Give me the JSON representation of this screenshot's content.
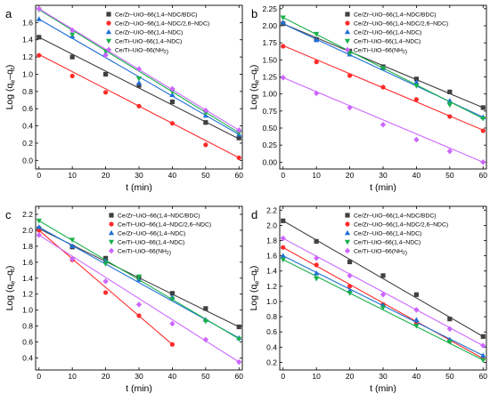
{
  "figure_colors": {
    "Ce/Zr–UiO–66(1,4–NDC/BDC)": "#404040",
    "Ce/Zr–UiO–66(1,4–NDC/2,6–NDC)": "#ff2a2a",
    "Ce/Zr–UiO–66(1,4–NDC)": "#1f6fd6",
    "Ce/Ti–UiO–66(1,4–NDC)": "#18b04a",
    "Ce/Ti–UiO–66(NH2)": "#cc66ff"
  },
  "chart_data": [
    {
      "panel": "a",
      "type": "scatter",
      "xlabel": "t (min)",
      "ylabel": "Log (qe−qt)",
      "xlim": [
        -1,
        61
      ],
      "ylim": [
        -0.1,
        1.8
      ],
      "xticks": [
        0,
        10,
        20,
        30,
        40,
        50,
        60
      ],
      "yticks": [
        0.0,
        0.2,
        0.4,
        0.6,
        0.8,
        1.0,
        1.2,
        1.4,
        1.6
      ],
      "legend_position": "top-right",
      "series": [
        {
          "name": "Ce/Zr–UiO–66(1,4–NDC/BDC)",
          "marker": "square",
          "x": [
            0,
            10,
            20,
            30,
            40,
            50,
            60
          ],
          "y": [
            1.43,
            1.2,
            1.0,
            0.87,
            0.68,
            0.44,
            0.26
          ],
          "fit": [
            1.43,
            0.25
          ]
        },
        {
          "name": "Ce/Zr–UiO–66(1,4–NDC/2,6–NDC)",
          "marker": "circle",
          "x": [
            0,
            10,
            20,
            30,
            40,
            50,
            60
          ],
          "y": [
            1.22,
            0.98,
            0.79,
            0.63,
            0.43,
            0.18,
            0.03
          ],
          "fit": [
            1.23,
            0.03
          ]
        },
        {
          "name": "Ce/Zr–UiO–66(1,4–NDC)",
          "marker": "triangle-up",
          "x": [
            0,
            10,
            20,
            30,
            40,
            50,
            60
          ],
          "y": [
            1.64,
            1.44,
            1.24,
            0.9,
            0.76,
            0.52,
            0.3
          ],
          "fit": [
            1.64,
            0.3
          ]
        },
        {
          "name": "Ce/Ti–UiO–66(1,4–NDC)",
          "marker": "triangle-down",
          "x": [
            0,
            10,
            20,
            30,
            40,
            50,
            60
          ],
          "y": [
            1.75,
            1.46,
            1.27,
            0.95,
            0.8,
            0.55,
            0.32
          ],
          "fit": [
            1.75,
            0.32
          ]
        },
        {
          "name": "Ce/Ti–UiO–66(NH2)",
          "marker": "diamond",
          "x": [
            0,
            10,
            20,
            30,
            40,
            50,
            60
          ],
          "y": [
            1.76,
            1.51,
            1.22,
            1.06,
            0.83,
            0.58,
            0.35
          ],
          "fit": [
            1.76,
            0.35
          ]
        }
      ]
    },
    {
      "panel": "b",
      "type": "scatter",
      "xlabel": "t (min)",
      "ylabel": "Log (qe−qt)",
      "xlim": [
        -1,
        61
      ],
      "ylim": [
        -0.1,
        2.3
      ],
      "xticks": [
        0,
        10,
        20,
        30,
        40,
        50,
        60
      ],
      "yticks": [
        0.0,
        0.25,
        0.5,
        0.75,
        1.0,
        1.25,
        1.5,
        1.75,
        2.0,
        2.25
      ],
      "legend_position": "top-right",
      "series": [
        {
          "name": "Ce/Zr–UiO–66(1,4–NDC/BDC)",
          "marker": "square",
          "x": [
            0,
            10,
            20,
            30,
            40,
            50,
            60
          ],
          "y": [
            2.03,
            1.8,
            1.63,
            1.4,
            1.22,
            1.03,
            0.8
          ],
          "fit": [
            2.03,
            0.8
          ]
        },
        {
          "name": "Ce/Zr–UiO–66(1,4–NDC/2,6–NDC)",
          "marker": "circle",
          "x": [
            0,
            10,
            20,
            30,
            40,
            50,
            60
          ],
          "y": [
            1.7,
            1.47,
            1.27,
            1.1,
            0.92,
            0.67,
            0.46
          ],
          "fit": [
            1.71,
            0.47
          ]
        },
        {
          "name": "Ce/Zr–UiO–66(1,4–NDC)",
          "marker": "triangle-up",
          "x": [
            0,
            10,
            20,
            30,
            40,
            50,
            60
          ],
          "y": [
            2.05,
            1.79,
            1.58,
            1.38,
            1.17,
            0.9,
            0.66
          ],
          "fit": [
            2.03,
            0.66
          ]
        },
        {
          "name": "Ce/Ti–UiO–66(1,4–NDC)",
          "marker": "triangle-down",
          "x": [
            0,
            10,
            20,
            30,
            40,
            50,
            60
          ],
          "y": [
            2.12,
            1.88,
            1.6,
            1.38,
            1.12,
            0.84,
            0.64
          ],
          "fit": [
            2.12,
            0.64
          ]
        },
        {
          "name": "Ce/Ti–UiO–66(NH2)",
          "marker": "diamond",
          "x": [
            0,
            10,
            20,
            30,
            40,
            50,
            60
          ],
          "y": [
            1.24,
            1.01,
            0.8,
            0.55,
            0.33,
            0.16,
            0.0
          ],
          "fit": [
            1.24,
            0.0
          ]
        }
      ]
    },
    {
      "panel": "c",
      "type": "scatter",
      "xlabel": "t (min)",
      "ylabel": "Log (qe−qt)",
      "xlim": [
        -1,
        61
      ],
      "ylim": [
        0.25,
        2.3
      ],
      "xticks": [
        0,
        10,
        20,
        30,
        40,
        50,
        60
      ],
      "yticks": [
        0.4,
        0.6,
        0.8,
        1.0,
        1.2,
        1.4,
        1.6,
        1.8,
        2.0,
        2.2
      ],
      "legend_position": "top-right",
      "series": [
        {
          "name": "Ce/Zr–UiO–66(1,4–NDC/BDC)",
          "marker": "square",
          "x": [
            0,
            10,
            20,
            30,
            40,
            50,
            60
          ],
          "y": [
            2.02,
            1.79,
            1.65,
            1.41,
            1.21,
            1.02,
            0.79
          ],
          "fit": [
            2.02,
            0.79
          ]
        },
        {
          "name": "Ce/Ti–UiO–66(1,4–NDC/2,6–NDC)",
          "marker": "circle",
          "x": [
            0,
            10,
            20,
            30,
            40
          ],
          "y": [
            2.0,
            1.63,
            1.22,
            0.93,
            0.57
          ],
          "fit": [
            2.0,
            0.57
          ]
        },
        {
          "name": "Ce/Zr–UiO–66(1,4–NDC)",
          "marker": "triangle-up",
          "x": [
            0,
            10,
            20,
            30,
            40,
            50,
            60
          ],
          "y": [
            2.04,
            1.8,
            1.62,
            1.38,
            1.16,
            0.88,
            0.65
          ],
          "fit": [
            2.04,
            0.65
          ]
        },
        {
          "name": "Ce/Ti–UiO–66(1,4–NDC)",
          "marker": "triangle-down",
          "x": [
            0,
            10,
            20,
            30,
            40,
            50,
            60
          ],
          "y": [
            2.12,
            1.88,
            1.58,
            1.42,
            1.14,
            0.86,
            0.64
          ],
          "fit": [
            2.12,
            0.64
          ]
        },
        {
          "name": "Ce/Ti–UiO–66(NH2)",
          "marker": "diamond",
          "x": [
            0,
            10,
            20,
            30,
            40,
            50,
            60
          ],
          "y": [
            1.94,
            1.64,
            1.36,
            1.07,
            0.83,
            0.63,
            0.35
          ],
          "fit": [
            1.94,
            0.35
          ]
        }
      ]
    },
    {
      "panel": "d",
      "type": "scatter",
      "xlabel": "t (min)",
      "ylabel": "Log (qe−qt)",
      "xlim": [
        -1,
        61
      ],
      "ylim": [
        0.1,
        2.25
      ],
      "xticks": [
        0,
        10,
        20,
        30,
        40,
        50,
        60
      ],
      "yticks": [
        0.2,
        0.4,
        0.6,
        0.8,
        1.0,
        1.2,
        1.4,
        1.6,
        1.8,
        2.0,
        2.2
      ],
      "legend_position": "top-right",
      "series": [
        {
          "name": "Ce/Zr–UiO–66(1,4–NDC/BDC)",
          "marker": "square",
          "x": [
            0,
            10,
            20,
            30,
            40,
            50,
            60
          ],
          "y": [
            2.06,
            1.79,
            1.52,
            1.34,
            1.09,
            0.77,
            0.54
          ],
          "fit": [
            2.06,
            0.54
          ]
        },
        {
          "name": "Ce/Zr–UiO–66(1,4–NDC/2,6–NDC)",
          "marker": "circle",
          "x": [
            0,
            10,
            20,
            30,
            40,
            50,
            60
          ],
          "y": [
            1.71,
            1.48,
            1.2,
            0.96,
            0.72,
            0.48,
            0.25
          ],
          "fit": [
            1.71,
            0.25
          ]
        },
        {
          "name": "Ce/Zr–UiO–66(1,4–NDC)",
          "marker": "triangle-up",
          "x": [
            0,
            10,
            20,
            30,
            40,
            50,
            60
          ],
          "y": [
            1.6,
            1.37,
            1.14,
            0.95,
            0.76,
            0.5,
            0.29
          ],
          "fit": [
            1.6,
            0.29
          ]
        },
        {
          "name": "Ce/Ti–UiO–66(1,4–NDC)",
          "marker": "triangle-down",
          "x": [
            0,
            10,
            20,
            30,
            40,
            50,
            60
          ],
          "y": [
            1.55,
            1.3,
            1.11,
            0.92,
            0.68,
            0.47,
            0.23
          ],
          "fit": [
            1.55,
            0.23
          ]
        },
        {
          "name": "Ce/Ti–UiO–66(NH2)",
          "marker": "diamond",
          "x": [
            0,
            10,
            20,
            30,
            40,
            50,
            60
          ],
          "y": [
            1.83,
            1.57,
            1.34,
            1.09,
            0.89,
            0.64,
            0.42
          ],
          "fit": [
            1.83,
            0.42
          ]
        }
      ]
    }
  ]
}
